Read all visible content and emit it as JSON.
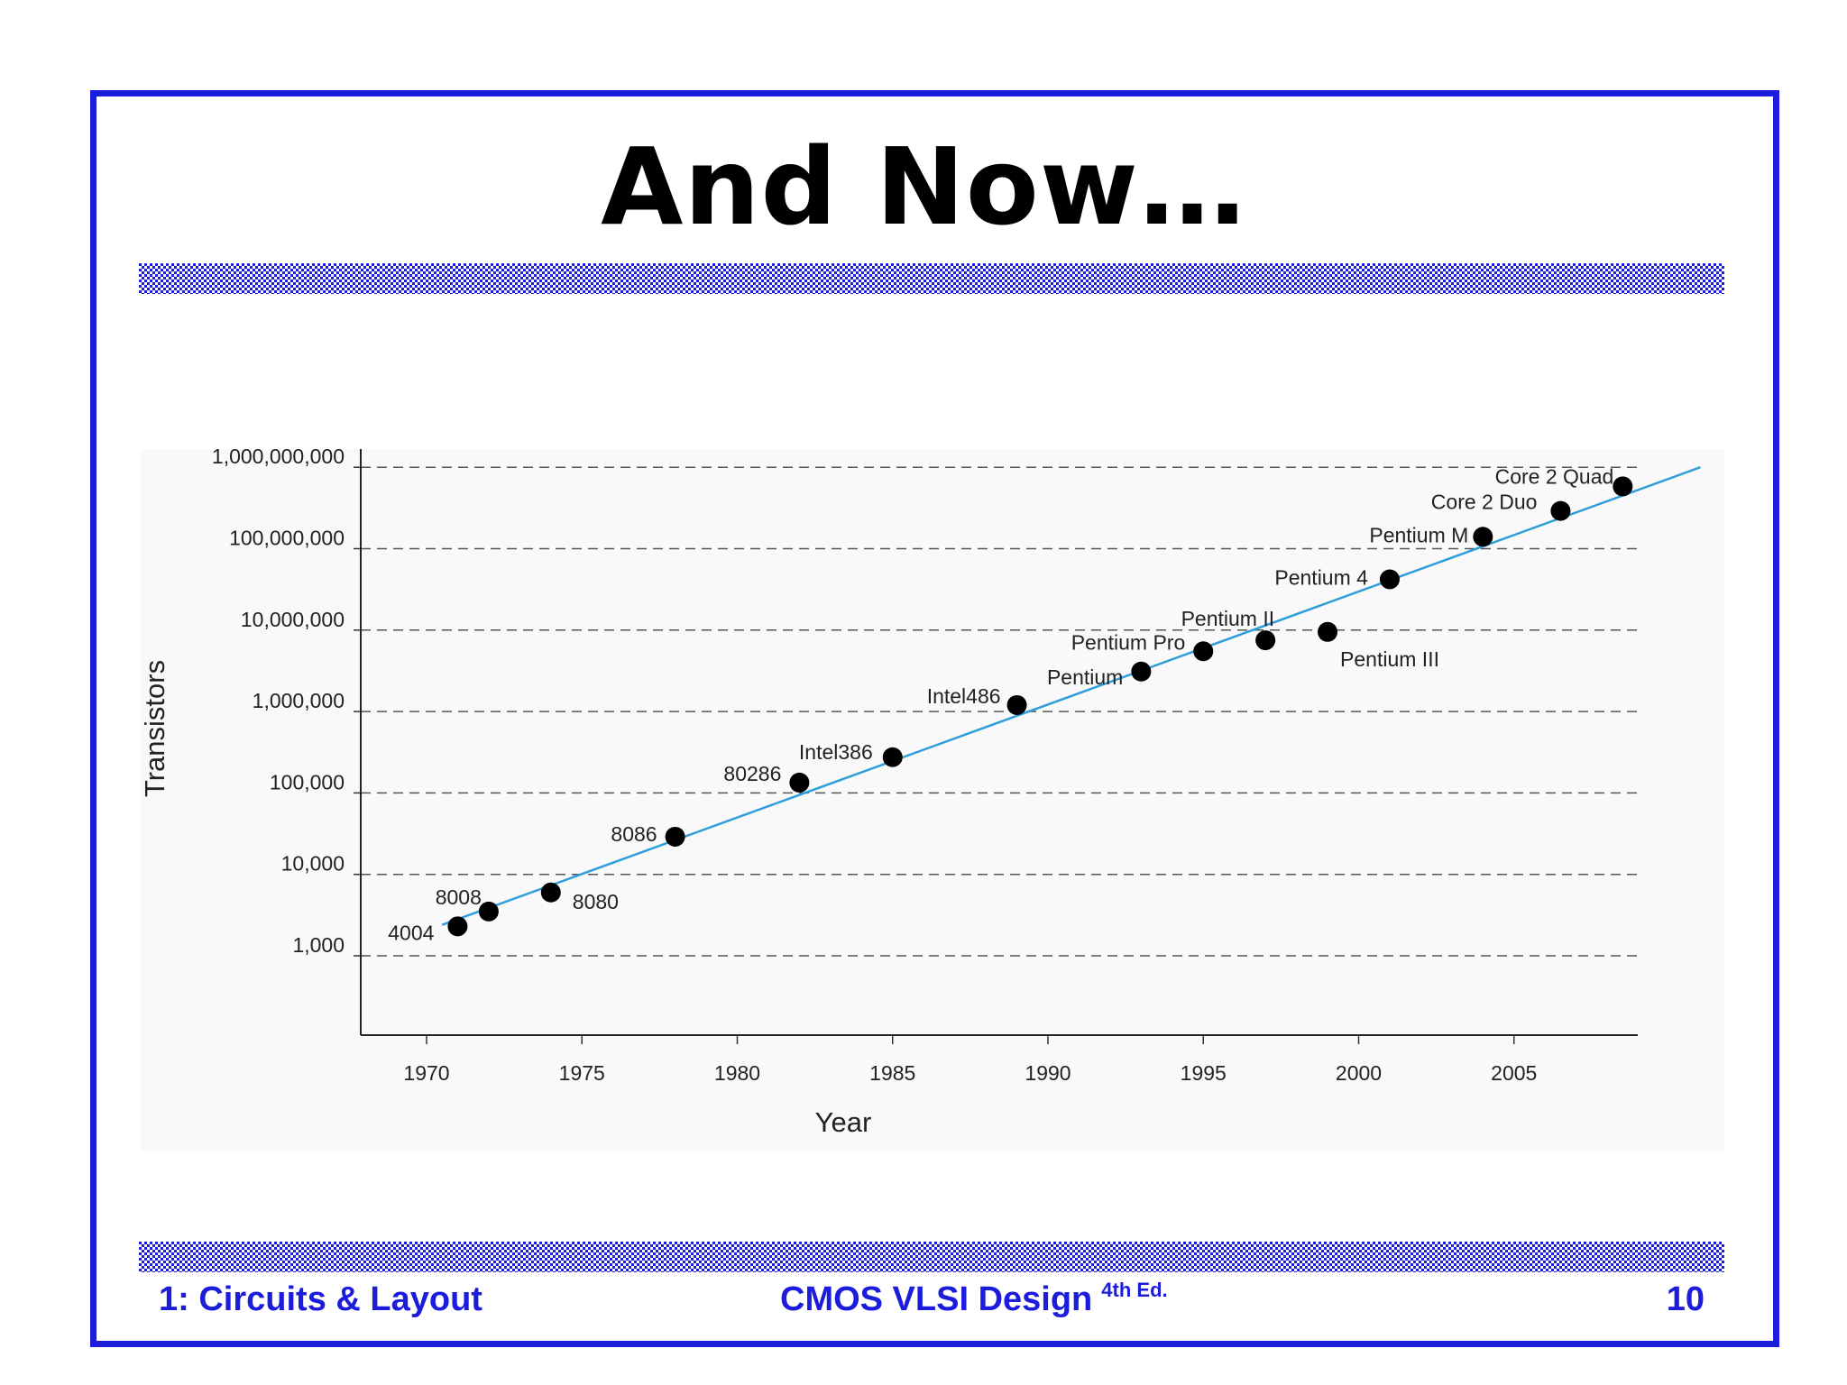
{
  "slide": {
    "title": "And Now…",
    "footer_left": "1: Circuits & Layout",
    "footer_center": "CMOS VLSI Design",
    "footer_center_sup": "4th Ed.",
    "page_number": "10",
    "accent_color": "#1c1cdc"
  },
  "chart_data": {
    "type": "scatter",
    "title": "",
    "xlabel": "Year",
    "ylabel": "Transistors",
    "y_scale": "log",
    "xlim": [
      1968,
      2009
    ],
    "ylim": [
      100,
      1000000000
    ],
    "x_ticks": [
      1970,
      1975,
      1980,
      1985,
      1990,
      1995,
      2000,
      2005
    ],
    "x_tick_labels": [
      "1970",
      "1975",
      "1980",
      "1985",
      "1990",
      "1995",
      "2000",
      "2005"
    ],
    "y_ticks": [
      1000,
      10000,
      100000,
      1000000,
      10000000,
      100000000,
      1000000000
    ],
    "y_tick_labels": [
      "1,000",
      "10,000",
      "100,000",
      "1,000,000",
      "10,000,000",
      "100,000,000",
      "1,000,000,000"
    ],
    "grid": "horizontal dashed",
    "points": [
      {
        "label": "4004",
        "x": 1971,
        "y": 2300
      },
      {
        "label": "8008",
        "x": 1972,
        "y": 3500
      },
      {
        "label": "8080",
        "x": 1974,
        "y": 6000
      },
      {
        "label": "8086",
        "x": 1978,
        "y": 29000
      },
      {
        "label": "80286",
        "x": 1982,
        "y": 134000
      },
      {
        "label": "Intel386",
        "x": 1985,
        "y": 275000
      },
      {
        "label": "Intel486",
        "x": 1989,
        "y": 1200000
      },
      {
        "label": "Pentium",
        "x": 1993,
        "y": 3100000
      },
      {
        "label": "Pentium Pro",
        "x": 1995,
        "y": 5500000
      },
      {
        "label": "Pentium II",
        "x": 1997,
        "y": 7500000
      },
      {
        "label": "Pentium III",
        "x": 1999,
        "y": 9500000
      },
      {
        "label": "Pentium 4",
        "x": 2001,
        "y": 42000000
      },
      {
        "label": "Pentium M",
        "x": 2004,
        "y": 140000000
      },
      {
        "label": "Core 2 Duo",
        "x": 2006.5,
        "y": 291000000
      },
      {
        "label": "Core 2 Quad",
        "x": 2008.5,
        "y": 582000000
      }
    ],
    "trend_line": {
      "x": [
        1970.5,
        2011
      ],
      "y": [
        2400,
        1000000000
      ]
    },
    "trend_color": "#2f9fdc",
    "point_color": "#000000"
  }
}
